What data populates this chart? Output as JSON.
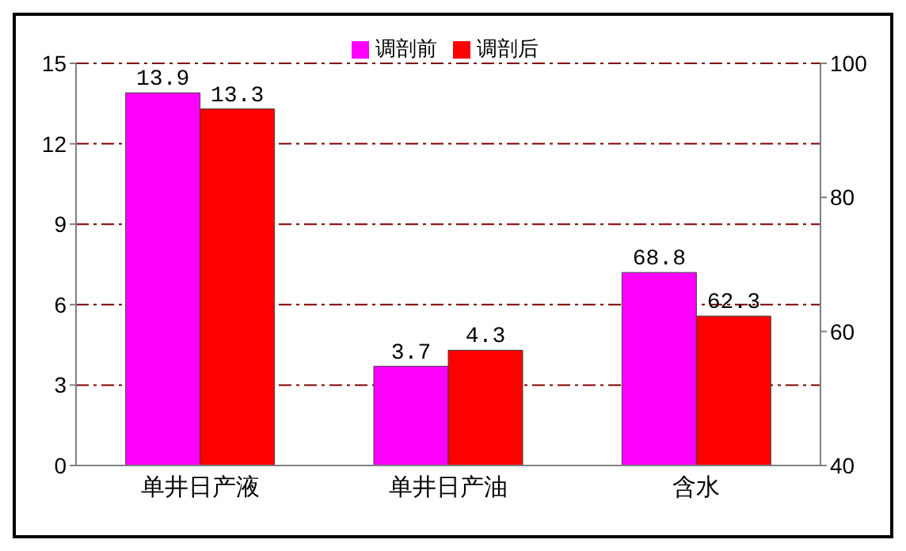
{
  "chart_data": {
    "type": "bar",
    "categories": [
      "单井日产液",
      "单井日产油",
      "含水"
    ],
    "series": [
      {
        "name": "调剖前",
        "color": "#ff00ff",
        "values": [
          13.9,
          3.7,
          null
        ]
      },
      {
        "name": "调剖后",
        "color": "#ff0000",
        "values": [
          13.3,
          4.3,
          null
        ]
      },
      {
        "color": "#ff00ff",
        "values": [
          null,
          null,
          68.8
        ],
        "axis": "y2"
      },
      {
        "color": "#ff0000",
        "values": [
          null,
          null,
          62.3
        ],
        "axis": "y2"
      }
    ],
    "ylim": [
      0,
      15
    ],
    "yticks": [
      0,
      3,
      6,
      9,
      12,
      15
    ],
    "y2lim": [
      40,
      100
    ],
    "y2ticks": [
      40,
      60,
      80,
      100
    ],
    "grid": "y",
    "legend": "top",
    "data_labels": true
  }
}
